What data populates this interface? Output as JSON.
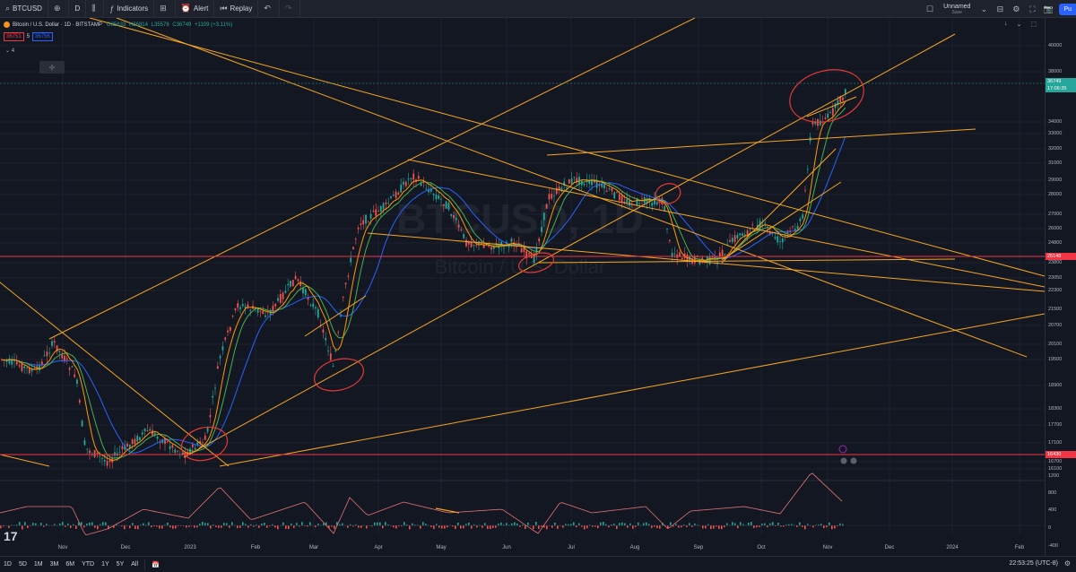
{
  "topbar": {
    "symbol": "BTCUSD",
    "interval": "D",
    "indicators_label": "Indicators",
    "alert_label": "Alert",
    "replay_label": "Replay",
    "layout_name": "Unnamed",
    "layout_sub": "Save",
    "publish_label": "Pu"
  },
  "legend": {
    "title": "Bitcoin / U.S. Dollar · 1D · BITSTAMP",
    "open": "O35633",
    "high": "H36814",
    "low": "L35578",
    "close": "C36749",
    "change": "+1109 (+3.11%)",
    "sell_price": "36751",
    "spread": "5",
    "buy_price": "36756",
    "indicator_count": "4"
  },
  "watermark": {
    "symbol": "BTCUSD, 1D",
    "name": "Bitcoin / U.S. Dollar"
  },
  "price_axis": {
    "ticks": [
      "40000",
      "38000",
      "34000",
      "33000",
      "32000",
      "31000",
      "29000",
      "28000",
      "27000",
      "26000",
      "24800",
      "23800",
      "23050",
      "22300",
      "21500",
      "20700",
      "20100",
      "19500",
      "18900",
      "18300",
      "17700",
      "17100",
      "16700",
      "16100"
    ],
    "current_price": "36749",
    "countdown": "17:06:35",
    "level_upper": "25148",
    "level_lower": "16430",
    "osc_ticks": [
      "1200",
      "800",
      "400",
      "0",
      "-400"
    ]
  },
  "time_axis": [
    "Nov",
    "Dec",
    "2023",
    "Feb",
    "Mar",
    "Apr",
    "May",
    "Jun",
    "Jul",
    "Aug",
    "Sep",
    "Oct",
    "Nov",
    "Dec",
    "2024",
    "Feb"
  ],
  "bottombar": {
    "ranges": [
      "1D",
      "5D",
      "1M",
      "3M",
      "6M",
      "YTD",
      "1Y",
      "5Y",
      "All"
    ],
    "clock": "22:53:25 (UTC-8)"
  },
  "colors": {
    "bg": "#131722",
    "up": "#26a69a",
    "down": "#ef5350",
    "trend": "#f5a623",
    "level": "#f23645",
    "ma_blue": "#2962ff",
    "ma_green": "#4caf50",
    "ma_orange": "#ff9800",
    "annot": "#e53935"
  }
}
